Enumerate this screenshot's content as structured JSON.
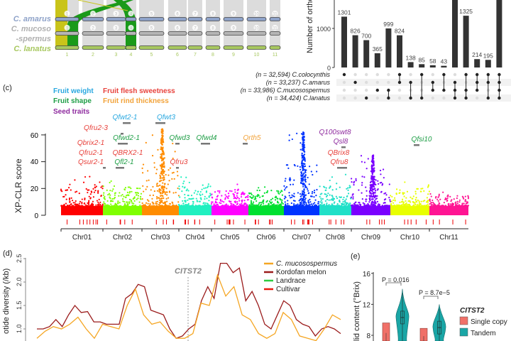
{
  "chart_data": [
    {
      "type": "synteny",
      "panel": "a",
      "species": [
        "C. amarus",
        "C. mucoso",
        "-spermus",
        "C. lanatus"
      ],
      "chromosomes": [
        "1",
        "2",
        "3",
        "4",
        "5",
        "6",
        "7",
        "8",
        "9",
        "10",
        "11"
      ],
      "colors": {
        "amarus": "#8fa3c9",
        "mucoso": "#b5b5b5",
        "lanatus": "#a8c860",
        "ribbon_green": "#1a9a1a",
        "ribbon_olive": "#c9c41a",
        "ribbon_grey": "#dcdcdc"
      }
    },
    {
      "type": "bar",
      "panel": "b",
      "ylabel": "Number of ortho",
      "yticks": [
        "0",
        "1000"
      ],
      "values": [
        1301,
        826,
        700,
        365,
        999,
        824,
        138,
        85,
        58,
        43,
        null,
        1325,
        214,
        195,
        null
      ],
      "labels": [
        "1301",
        "826",
        "700",
        "365",
        "999",
        "824",
        "138",
        "85",
        "58",
        "43",
        "",
        "1325",
        "214",
        "195",
        ""
      ],
      "sets": [
        "(n = 32,594) C.colocynthis",
        "(n = 33,237) C.amarus",
        "(n = 33,986) C.mucosospermus",
        "(n = 34,424) C.lanatus"
      ],
      "membership": [
        [
          0
        ],
        [
          1
        ],
        [
          3
        ],
        [
          2
        ],
        [
          2,
          3
        ],
        [
          0,
          1
        ],
        [
          1,
          3
        ],
        [
          0,
          3
        ],
        [
          1,
          2
        ],
        [
          0,
          2
        ],
        [
          1,
          2,
          3
        ],
        [
          0,
          2,
          3
        ],
        [
          0,
          1,
          2
        ],
        [
          0,
          1,
          3
        ],
        [
          0,
          1,
          2,
          3
        ]
      ]
    },
    {
      "type": "scatter",
      "panel": "c",
      "panel_label": "(c)",
      "ylabel": "XP-CLR score",
      "yticks": [
        "0",
        "20",
        "40",
        "60"
      ],
      "ylim": [
        0,
        65
      ],
      "legend": [
        {
          "label": "Fruit weight",
          "color": "#29a8e0"
        },
        {
          "label": "Fruit flesh sweetness",
          "color": "#e8423c"
        },
        {
          "label": "Fruit shape",
          "color": "#1e9e46"
        },
        {
          "label": "Fruit rind thickness",
          "color": "#f2a33a"
        },
        {
          "label": "Seed traits",
          "color": "#8e2a9e"
        }
      ],
      "chromosomes": [
        {
          "name": "Chr01",
          "color": "#ff0000",
          "peak": 30
        },
        {
          "name": "Chr02",
          "color": "#7fff00",
          "peak": 30
        },
        {
          "name": "Chr03",
          "color": "#ff8c00",
          "peak": 65
        },
        {
          "name": "Chr04",
          "color": "#20f0c0",
          "peak": 31
        },
        {
          "name": "Chr05",
          "color": "#ff00ff",
          "peak": 25
        },
        {
          "name": "Chr06",
          "color": "#00e030",
          "peak": 24
        },
        {
          "name": "Chr07",
          "color": "#0033ff",
          "peak": 62
        },
        {
          "name": "Chr08",
          "color": "#20e0c8",
          "peak": 31
        },
        {
          "name": "Chr09",
          "color": "#7a00ff",
          "peak": 45
        },
        {
          "name": "Chr10",
          "color": "#e8ff00",
          "peak": 26
        },
        {
          "name": "Chr11",
          "color": "#ff1493",
          "peak": 18
        }
      ],
      "qtls": [
        "Qfwt2-1",
        "Qfwt3",
        "Qfru2-3",
        "Qfwd2-1",
        "Qfwd3",
        "Qfwd4",
        "Qrth5",
        "Qbrix2-1",
        "Qfru2-1",
        "QBRX2-1",
        "Qsur2-1",
        "Qfl2-1",
        "Qfru3",
        "Q100swt8",
        "Qsl8",
        "QBrix8",
        "Qfru8",
        "Qfsi10"
      ]
    },
    {
      "type": "line",
      "panel": "d",
      "panel_label": "(d)",
      "ylabel": "otide diversity (/kb)",
      "yticks": [
        "1.0",
        "1.5",
        "2.0",
        "2.5"
      ],
      "marker_label": "CITST2",
      "series": [
        {
          "name": "C. mucosospermus",
          "color": "#f5a623",
          "values": [
            0.8,
            0.95,
            1.05,
            1.0,
            1.1,
            1.25,
            1.0,
            0.8,
            1.1,
            1.05,
            1.0,
            1.5,
            1.85,
            1.3,
            1.1,
            1.15,
            0.95,
            0.8,
            0.8,
            0.9,
            1.55,
            1.5,
            2.15,
            1.7,
            1.9,
            1.3,
            1.2,
            0.9,
            0.8,
            0.9,
            1.35,
            1.2,
            0.85,
            0.8,
            0.75,
            1.0,
            1.3,
            1.2
          ]
        },
        {
          "name": "Kordofan melon",
          "color": "#9b1c1c",
          "values": [
            1.0,
            1.0,
            1.05,
            1.2,
            1.05,
            1.3,
            1.5,
            1.35,
            1.37,
            1.15,
            1.15,
            1.1,
            1.1,
            1.1,
            1.65,
            1.75,
            1.95,
            1.9,
            1.4,
            1.35,
            1.3,
            1.0,
            0.8,
            0.85,
            1.0,
            1.1,
            1.6,
            1.9,
            1.65,
            2.4,
            2.4,
            2.2,
            2.3,
            1.6,
            1.8,
            1.5,
            1.1,
            1.0,
            1.3,
            1.6,
            1.5,
            1.2,
            1.1,
            1.05,
            0.85,
            1.0,
            1.05,
            1.0,
            0.9
          ]
        },
        {
          "name": "Landrace",
          "color": "#2ecc40",
          "values": []
        },
        {
          "name": "Cultivar",
          "color": "#e8180c",
          "values": []
        }
      ]
    },
    {
      "type": "violin",
      "panel": "e",
      "panel_label": "(e)",
      "ylabel": "lid content (°Brix)",
      "yticks": [
        "8",
        "12",
        "16"
      ],
      "legend_title": "CITST2",
      "groups": [
        {
          "name": "Single copy",
          "color": "#f07068"
        },
        {
          "name": "Tandem",
          "color": "#1aa6a6"
        }
      ],
      "comparisons": [
        {
          "p": "P = 0.016",
          "single": {
            "min": 7.5,
            "max": 9.6,
            "median": 8.3
          },
          "tandem": {
            "min": 7.5,
            "max": 14,
            "median": 10.3
          }
        },
        {
          "p": "P = 8.7e−5",
          "single": {
            "min": 7.5,
            "max": 8.9,
            "median": 7.9
          },
          "tandem": {
            "min": 7.5,
            "max": 12,
            "median": 9.0
          }
        }
      ]
    }
  ]
}
